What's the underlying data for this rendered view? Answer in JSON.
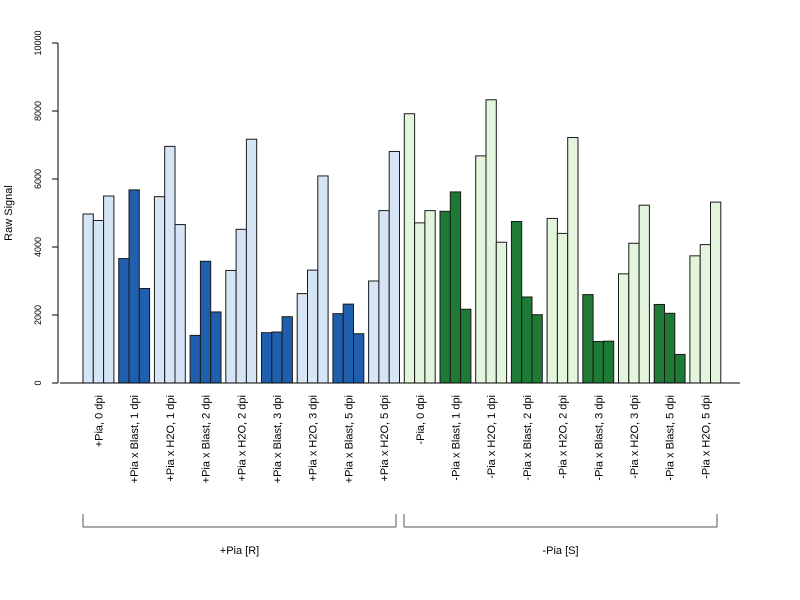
{
  "chart_data": {
    "type": "bar",
    "ylabel": "Raw Signal",
    "ylim": [
      0,
      10000
    ],
    "yticks": [
      0,
      2000,
      4000,
      6000,
      8000,
      10000
    ],
    "grid": false,
    "colors": {
      "plus_light": "#d6e5f5",
      "plus_dark": "#1f5fad",
      "minus_light": "#e3f5dc",
      "minus_dark": "#1e7a34",
      "edge": "#1a1a1a"
    },
    "categories": [
      "+Pia, 0 dpi",
      "+Pia x Blast, 1 dpi",
      "+Pia x H2O, 1 dpi",
      "+Pia x Blast, 2 dpi",
      "+Pia x H2O, 2 dpi",
      "+Pia x Blast, 3 dpi",
      "+Pia x H2O, 3 dpi",
      "+Pia x Blast, 5 dpi",
      "+Pia x H2O, 5 dpi",
      "-Pia, 0 dpi",
      "-Pia x Blast, 1 dpi",
      "-Pia x H2O, 1 dpi",
      "-Pia x Blast, 2 dpi",
      "-Pia x H2O, 2 dpi",
      "-Pia x Blast, 3 dpi",
      "-Pia x H2O, 3 dpi",
      "-Pia x Blast, 5 dpi",
      "-Pia x H2O, 5 dpi"
    ],
    "fills": [
      "plus_light",
      "plus_dark",
      "plus_light",
      "plus_dark",
      "plus_light",
      "plus_dark",
      "plus_light",
      "plus_dark",
      "plus_light",
      "minus_light",
      "minus_dark",
      "minus_light",
      "minus_dark",
      "minus_light",
      "minus_dark",
      "minus_light",
      "minus_dark",
      "minus_light"
    ],
    "values": [
      [
        4970,
        4780,
        5500
      ],
      [
        3660,
        5680,
        2780
      ],
      [
        5480,
        6960,
        4660
      ],
      [
        1400,
        3580,
        2090
      ],
      [
        3310,
        4520,
        7170
      ],
      [
        1480,
        1500,
        1950
      ],
      [
        2630,
        3320,
        6090
      ],
      [
        2040,
        2320,
        1450
      ],
      [
        3000,
        5070,
        6810
      ],
      [
        7920,
        4710,
        5070
      ],
      [
        5050,
        5620,
        2170
      ],
      [
        6680,
        8330,
        4140
      ],
      [
        4750,
        2530,
        2010
      ],
      [
        4840,
        4400,
        7220
      ],
      [
        2600,
        1220,
        1230
      ],
      [
        3210,
        4110,
        5230
      ],
      [
        2310,
        2050,
        840
      ],
      [
        3740,
        4070,
        5320
      ]
    ],
    "groups": [
      {
        "label": "+Pia [R]",
        "start": 0,
        "end": 8
      },
      {
        "label": "-Pia [S]",
        "start": 9,
        "end": 17
      }
    ]
  }
}
